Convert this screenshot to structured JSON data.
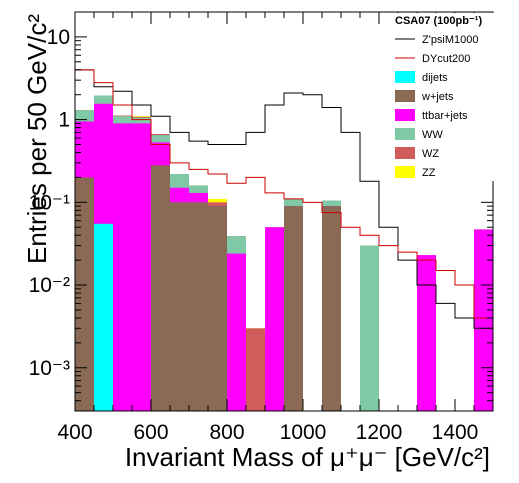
{
  "chart_data": {
    "type": "bar",
    "stacked": true,
    "log_y": true,
    "xlabel": "Invariant Mass of μ⁺μ⁻ [GeV/c²]",
    "ylabel": "Entries per 50 GeV/c²",
    "xlim": [
      400,
      1500
    ],
    "ylim": [
      0.0003,
      20
    ],
    "x_ticks": [
      400,
      600,
      800,
      1000,
      1200,
      1400
    ],
    "y_ticks": [
      {
        "value": 0.001,
        "label": "10⁻³"
      },
      {
        "value": 0.01,
        "label": "10⁻²"
      },
      {
        "value": 0.1,
        "label": "10⁻¹"
      },
      {
        "value": 1,
        "label": "1"
      },
      {
        "value": 10,
        "label": "10"
      }
    ],
    "bin_edges": [
      400,
      450,
      500,
      550,
      600,
      650,
      700,
      750,
      800,
      850,
      900,
      950,
      1000,
      1050,
      1100,
      1150,
      1200,
      1250,
      1300,
      1350,
      1400,
      1450,
      1500
    ],
    "legend": {
      "title": "CSA07 (100pb⁻¹)",
      "placement": "top-right"
    },
    "series": [
      {
        "name": "dijets",
        "kind": "fill",
        "color": "#00ffff",
        "values": [
          0,
          0.055,
          0,
          0,
          0,
          0,
          0,
          0,
          0,
          0,
          0,
          0,
          0,
          0,
          0,
          0,
          0,
          0,
          0,
          0,
          0,
          0
        ]
      },
      {
        "name": "w+jets",
        "kind": "fill",
        "color": "#8b6a55",
        "values": [
          0.2,
          0,
          0,
          0,
          0.28,
          0.1,
          0.1,
          0.09,
          0,
          0,
          0,
          0.09,
          0,
          0.09,
          0,
          0,
          0,
          0,
          0,
          0,
          0,
          0
        ]
      },
      {
        "name": "ttbar+jets",
        "kind": "fill",
        "color": "#ff00ff",
        "values": [
          0.75,
          1.5,
          0.9,
          0.9,
          0.25,
          0.05,
          0.03,
          0,
          0.024,
          0,
          0.05,
          0,
          0,
          0,
          0,
          0,
          0,
          0,
          0.023,
          0,
          0,
          0.047
        ]
      },
      {
        "name": "WW",
        "kind": "fill",
        "color": "#7fc9a7",
        "values": [
          0.35,
          0.4,
          0.2,
          0.15,
          0.12,
          0.07,
          0.03,
          0,
          0.015,
          0,
          0,
          0.02,
          0,
          0.015,
          0,
          0.03,
          0,
          0,
          0,
          0,
          0,
          0
        ]
      },
      {
        "name": "WZ",
        "kind": "fill",
        "color": "#d05c5c",
        "values": [
          0,
          0,
          0.02,
          0.03,
          0.02,
          0,
          0,
          0.01,
          0,
          0.003,
          0,
          0,
          0,
          0,
          0,
          0,
          0,
          0,
          0,
          0,
          0,
          0
        ]
      },
      {
        "name": "ZZ",
        "kind": "fill",
        "color": "#ffff00",
        "values": [
          0,
          0,
          0,
          0.02,
          0,
          0,
          0,
          0.01,
          0,
          0,
          0,
          0,
          0,
          0,
          0,
          0,
          0,
          0,
          0,
          0,
          0,
          0
        ]
      },
      {
        "name": "Z'psiM1000",
        "kind": "line",
        "color": "#000000",
        "values": [
          4,
          2.5,
          2.2,
          1.5,
          1.1,
          0.7,
          0.55,
          0.5,
          0.5,
          0.7,
          1.5,
          2.1,
          2.0,
          1.4,
          0.7,
          0.18,
          0.05,
          0.02,
          0.01,
          0.006,
          0.004,
          0.003
        ]
      },
      {
        "name": "DYcut200",
        "kind": "line",
        "color": "#cc0000",
        "values": [
          4,
          2.8,
          1.5,
          1.0,
          0.5,
          0.3,
          0.25,
          0.22,
          0.17,
          0.2,
          0.13,
          0.11,
          0.1,
          0.075,
          0.05,
          0.04,
          0.03,
          0.025,
          0.02,
          0.015,
          0.01,
          0.004
        ]
      }
    ]
  }
}
